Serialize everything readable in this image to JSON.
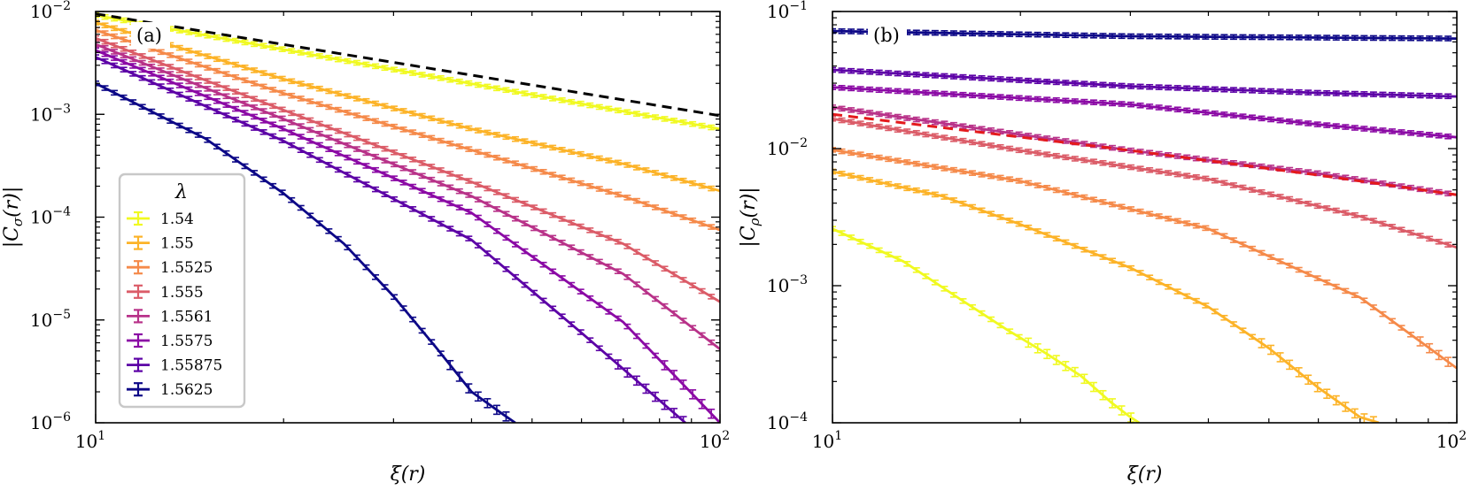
{
  "chart_data": [
    {
      "panel_label": "(a)",
      "type": "line",
      "xscale": "log",
      "yscale": "log",
      "xlim": [
        10,
        100
      ],
      "ylim": [
        1e-06,
        0.01
      ],
      "xlabel": "ξ(r)",
      "ylabel": "|C_σ(r)|",
      "ylabel_parts": {
        "pre": "|C",
        "sub": "σ",
        "post": "(r)|"
      },
      "xticks": [
        {
          "base": "10",
          "exp": "1",
          "value": 10
        },
        {
          "base": "10",
          "exp": "2",
          "value": 100
        }
      ],
      "yticks": [
        {
          "base": "10",
          "exp": "−6",
          "value": 1e-06
        },
        {
          "base": "10",
          "exp": "−5",
          "value": 1e-05
        },
        {
          "base": "10",
          "exp": "−4",
          "value": 0.0001
        },
        {
          "base": "10",
          "exp": "−3",
          "value": 0.001
        },
        {
          "base": "10",
          "exp": "−2",
          "value": 0.01
        }
      ],
      "grid": false,
      "legend": {
        "title": "λ",
        "placement": "lower-left",
        "entries": [
          "1.54",
          "1.55",
          "1.5525",
          "1.555",
          "1.5561",
          "1.5575",
          "1.55875",
          "1.5625"
        ]
      },
      "series": [
        {
          "name": "1.54",
          "color": "#f0f921",
          "points": [
            [
              10,
              0.0092
            ],
            [
              100,
              0.00072
            ]
          ]
        },
        {
          "name": "1.55",
          "color": "#fcb328",
          "points": [
            [
              10,
              0.0078
            ],
            [
              20,
              0.0022
            ],
            [
              40,
              0.00072
            ],
            [
              70,
              0.00033
            ],
            [
              100,
              0.00018
            ]
          ]
        },
        {
          "name": "1.5525",
          "color": "#f58a4a",
          "points": [
            [
              10,
              0.0066
            ],
            [
              20,
              0.0016
            ],
            [
              40,
              0.00045
            ],
            [
              70,
              0.00016
            ],
            [
              100,
              7.5e-05
            ]
          ]
        },
        {
          "name": "1.555",
          "color": "#db5c68",
          "points": [
            [
              10,
              0.0055
            ],
            [
              20,
              0.0011
            ],
            [
              40,
              0.00022
            ],
            [
              70,
              5.5e-05
            ],
            [
              100,
              1.5e-05
            ]
          ]
        },
        {
          "name": "1.5561",
          "color": "#b83289",
          "points": [
            [
              10,
              0.0048
            ],
            [
              20,
              0.0009
            ],
            [
              40,
              0.00016
            ],
            [
              70,
              2.8e-05
            ],
            [
              100,
              5.2e-06
            ]
          ]
        },
        {
          "name": "1.5575",
          "color": "#8b0aa5",
          "points": [
            [
              10,
              0.0042
            ],
            [
              20,
              0.00072
            ],
            [
              40,
              0.00011
            ],
            [
              70,
              9.5e-06
            ],
            [
              100,
              1e-06
            ]
          ]
        },
        {
          "name": "1.55875",
          "color": "#5c01a6",
          "points": [
            [
              10,
              0.0036
            ],
            [
              20,
              0.00055
            ],
            [
              40,
              6e-05
            ],
            [
              60,
              7.5e-06
            ],
            [
              88,
              1e-06
            ]
          ]
        },
        {
          "name": "1.5625",
          "color": "#0d0887",
          "points": [
            [
              10,
              0.002
            ],
            [
              15,
              0.00058
            ],
            [
              20,
              0.00017
            ],
            [
              25,
              5.5e-05
            ],
            [
              30,
              1.7e-05
            ],
            [
              35,
              5.5e-06
            ],
            [
              40,
              2e-06
            ],
            [
              45,
              1.2e-06
            ],
            [
              47,
              1e-06
            ]
          ]
        }
      ],
      "reference_line": {
        "style": "dashed",
        "color": "#000000",
        "points": [
          [
            10,
            0.0095
          ],
          [
            100,
            0.00097
          ]
        ]
      }
    },
    {
      "panel_label": "(b)",
      "type": "line",
      "xscale": "log",
      "yscale": "log",
      "xlim": [
        10,
        100
      ],
      "ylim": [
        0.0001,
        0.1
      ],
      "xlabel": "ξ(r)",
      "ylabel": "|C_ρ(r)|",
      "ylabel_parts": {
        "pre": "|C",
        "sub": "ρ",
        "post": "(r)|"
      },
      "xticks": [
        {
          "base": "10",
          "exp": "1",
          "value": 10
        },
        {
          "base": "10",
          "exp": "2",
          "value": 100
        }
      ],
      "yticks": [
        {
          "base": "10",
          "exp": "−4",
          "value": 0.0001
        },
        {
          "base": "10",
          "exp": "−3",
          "value": 0.001
        },
        {
          "base": "10",
          "exp": "−2",
          "value": 0.01
        },
        {
          "base": "10",
          "exp": "−1",
          "value": 0.1
        }
      ],
      "grid": false,
      "series": [
        {
          "name": "1.54",
          "color": "#f0f921",
          "points": [
            [
              10,
              0.0026
            ],
            [
              13,
              0.0015
            ],
            [
              16,
              0.0008
            ],
            [
              19,
              0.00048
            ],
            [
              22,
              0.00032
            ],
            [
              25,
              0.00022
            ],
            [
              28,
              0.00014
            ],
            [
              30,
              0.00011
            ],
            [
              31,
              0.0001
            ]
          ]
        },
        {
          "name": "1.55",
          "color": "#fcb328",
          "points": [
            [
              10,
              0.0068
            ],
            [
              15,
              0.0045
            ],
            [
              20,
              0.0028
            ],
            [
              30,
              0.00135
            ],
            [
              40,
              0.0007
            ],
            [
              50,
              0.00035
            ],
            [
              60,
              0.00018
            ],
            [
              70,
              0.00011
            ],
            [
              75,
              0.0001
            ]
          ]
        },
        {
          "name": "1.5525",
          "color": "#f58a4a",
          "points": [
            [
              10,
              0.0098
            ],
            [
              20,
              0.0058
            ],
            [
              40,
              0.0026
            ],
            [
              70,
              0.00082
            ],
            [
              100,
              0.00025
            ]
          ]
        },
        {
          "name": "1.555",
          "color": "#db5c68",
          "points": [
            [
              10,
              0.0165
            ],
            [
              20,
              0.0097
            ],
            [
              40,
              0.006
            ],
            [
              70,
              0.0032
            ],
            [
              100,
              0.0019
            ]
          ]
        },
        {
          "name": "1.5561",
          "color": "#b83289",
          "points": [
            [
              10,
              0.02
            ],
            [
              30,
              0.0097
            ],
            [
              60,
              0.0066
            ],
            [
              100,
              0.0046
            ]
          ]
        },
        {
          "name": "1.5575",
          "color": "#8b0aa5",
          "points": [
            [
              10,
              0.028
            ],
            [
              30,
              0.021
            ],
            [
              60,
              0.015
            ],
            [
              100,
              0.0121
            ]
          ]
        },
        {
          "name": "1.55875",
          "color": "#5c01a6",
          "points": [
            [
              10,
              0.0375
            ],
            [
              30,
              0.0285
            ],
            [
              60,
              0.0255
            ],
            [
              100,
              0.024
            ]
          ]
        },
        {
          "name": "1.5625",
          "color": "#0d0887",
          "points": [
            [
              10,
              0.072
            ],
            [
              30,
              0.066
            ],
            [
              60,
              0.0645
            ],
            [
              100,
              0.0635
            ]
          ]
        }
      ],
      "reference_line": {
        "style": "dashed",
        "color": "#e41a1c",
        "points": [
          [
            10,
            0.0178
          ],
          [
            30,
            0.0097
          ],
          [
            60,
            0.0064
          ],
          [
            100,
            0.0046
          ]
        ]
      }
    }
  ]
}
